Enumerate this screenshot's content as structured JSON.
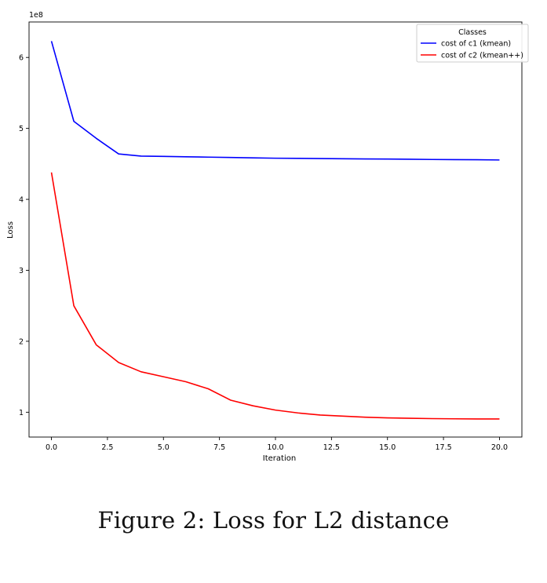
{
  "chart_data": {
    "type": "line",
    "xlabel": "Iteration",
    "ylabel": "Loss",
    "y_scale_label": "1e8",
    "xlim": [
      -1.0,
      21.0
    ],
    "ylim": [
      0.65,
      6.5
    ],
    "x_ticks": [
      0.0,
      2.5,
      5.0,
      7.5,
      10.0,
      12.5,
      15.0,
      17.5,
      20.0
    ],
    "x_tick_labels": [
      "0.0",
      "2.5",
      "5.0",
      "7.5",
      "10.0",
      "12.5",
      "15.0",
      "17.5",
      "20.0"
    ],
    "y_ticks": [
      1,
      2,
      3,
      4,
      5,
      6
    ],
    "y_tick_labels": [
      "1",
      "2",
      "3",
      "4",
      "5",
      "6"
    ],
    "grid": false,
    "legend": {
      "title": "Classes",
      "placement": "top-right"
    },
    "x": [
      0,
      1,
      2,
      3,
      4,
      5,
      6,
      7,
      8,
      9,
      10,
      11,
      12,
      13,
      14,
      15,
      16,
      17,
      18,
      19,
      20
    ],
    "series": [
      {
        "name": "cost of c1 (kmean)",
        "color": "#0000ff",
        "values": [
          6.23,
          5.1,
          4.86,
          4.64,
          4.61,
          4.605,
          4.6,
          4.595,
          4.59,
          4.585,
          4.58,
          4.578,
          4.575,
          4.572,
          4.57,
          4.568,
          4.565,
          4.562,
          4.56,
          4.558,
          4.555
        ]
      },
      {
        "name": "cost of c2 (kmean++)",
        "color": "#ff0000",
        "values": [
          4.38,
          2.5,
          1.95,
          1.7,
          1.57,
          1.5,
          1.43,
          1.33,
          1.17,
          1.09,
          1.03,
          0.99,
          0.96,
          0.945,
          0.93,
          0.92,
          0.915,
          0.91,
          0.907,
          0.905,
          0.905
        ]
      }
    ]
  },
  "caption": "Figure 2: Loss for L2 distance"
}
